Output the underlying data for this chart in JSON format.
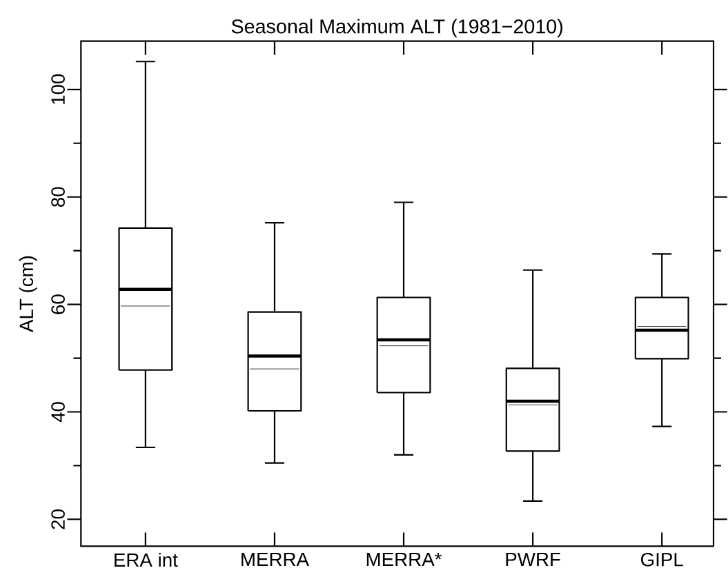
{
  "chart_data": {
    "type": "box",
    "title": "Seasonal Maximum ALT (1981−2010)",
    "ylabel": "ALT (cm)",
    "categories": [
      "ERA int",
      "MERRA",
      "MERRA*",
      "PWRF",
      "GIPL"
    ],
    "boxes": [
      {
        "low": 33.4,
        "q1": 47.8,
        "median": 62.8,
        "q3": 74.2,
        "high": 105.2,
        "mean": 59.7
      },
      {
        "low": 30.5,
        "q1": 40.2,
        "median": 50.4,
        "q3": 58.6,
        "high": 75.2,
        "mean": 48.0
      },
      {
        "low": 32.0,
        "q1": 43.6,
        "median": 53.4,
        "q3": 61.3,
        "high": 79.0,
        "mean": 52.3
      },
      {
        "low": 23.4,
        "q1": 32.7,
        "median": 42.0,
        "q3": 48.1,
        "high": 66.4,
        "mean": 41.3
      },
      {
        "low": 37.3,
        "q1": 49.9,
        "median": 55.2,
        "q3": 61.3,
        "high": 69.4,
        "mean": 55.9
      }
    ],
    "color": "#000000",
    "ylim": [
      15,
      109
    ],
    "yticks": [
      20,
      {
        "value": 30,
        "label": null
      },
      40,
      {
        "value": 50,
        "label": null
      },
      60,
      {
        "value": 70,
        "label": null
      },
      80,
      {
        "value": 90,
        "label": null
      },
      100
    ],
    "grid": false
  }
}
